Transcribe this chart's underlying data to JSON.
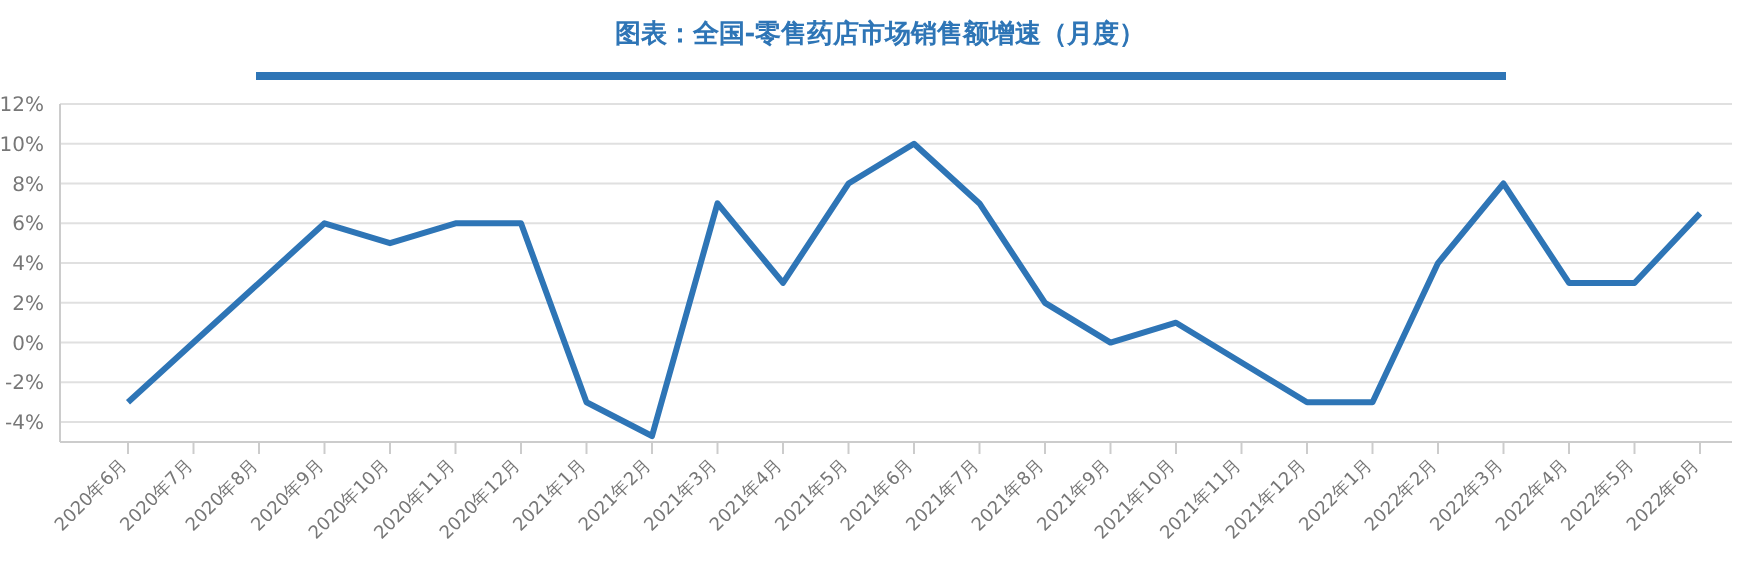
{
  "chart_data": {
    "type": "line",
    "title": "图表：全国-零售药店市场销售额增速（月度）",
    "categories": [
      "2020年6月",
      "2020年7月",
      "2020年8月",
      "2020年9月",
      "2020年10月",
      "2020年11月",
      "2020年12月",
      "2021年1月",
      "2021年2月",
      "2021年3月",
      "2021年4月",
      "2021年5月",
      "2021年6月",
      "2021年7月",
      "2021年8月",
      "2021年9月",
      "2021年10月",
      "2021年11月",
      "2021年12月",
      "2022年1月",
      "2022年2月",
      "2022年3月",
      "2022年4月",
      "2022年5月",
      "2022年6月"
    ],
    "series": [
      {
        "color": "#2e75b6",
        "values": [
          -3,
          0,
          3,
          6,
          5,
          6,
          6,
          -3,
          -4.7,
          7,
          3,
          8,
          10,
          7,
          2,
          0,
          1,
          -1,
          -3,
          -3,
          4,
          8,
          3,
          3,
          6.5
        ]
      }
    ],
    "ylim": [
      -5,
      12
    ],
    "yticks": [
      {
        "value": -4,
        "label": "-4%"
      },
      {
        "value": -2,
        "label": "-2%"
      },
      {
        "value": 0,
        "label": "0%"
      },
      {
        "value": 2,
        "label": "2%"
      },
      {
        "value": 4,
        "label": "4%"
      },
      {
        "value": 6,
        "label": "6%"
      },
      {
        "value": 8,
        "label": "8%"
      },
      {
        "value": 10,
        "label": "10%"
      },
      {
        "value": 12,
        "label": "12%"
      }
    ],
    "grid": "y",
    "marker": "none",
    "line_style": "solid"
  }
}
